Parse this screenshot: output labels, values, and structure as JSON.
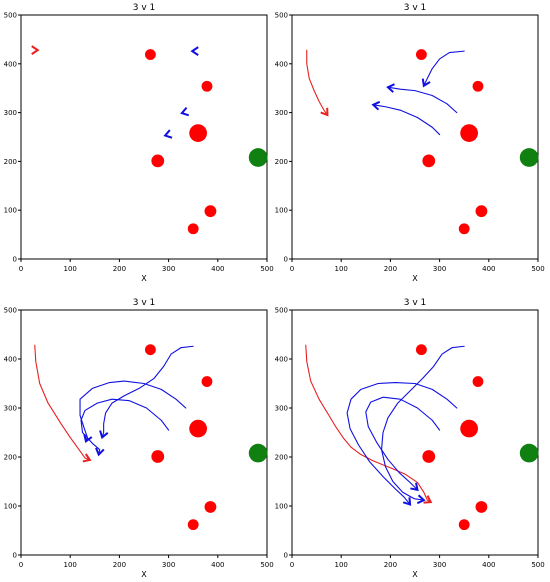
{
  "chart_data": [
    {
      "type": "scatter",
      "title": "3 v 1",
      "xlabel": "X",
      "ylabel": "",
      "xlim": [
        0,
        500
      ],
      "ylim": [
        0,
        500
      ],
      "xticks": [
        0,
        100,
        200,
        300,
        400,
        500
      ],
      "yticks": [
        0,
        100,
        200,
        300,
        400,
        500
      ],
      "grid": false,
      "obstacles": [
        {
          "x": 263,
          "y": 419,
          "r": 11
        },
        {
          "x": 378,
          "y": 354,
          "r": 11
        },
        {
          "x": 360,
          "y": 258,
          "r": 18
        },
        {
          "x": 278,
          "y": 201,
          "r": 13
        },
        {
          "x": 385,
          "y": 98,
          "r": 12
        },
        {
          "x": 350,
          "y": 62,
          "r": 11
        }
      ],
      "goal": {
        "x": 482,
        "y": 208,
        "r": 19
      },
      "series": [
        {
          "color": "#e82020",
          "points": [
            [
              26,
              428
            ],
            [
              34,
              428
            ]
          ]
        },
        {
          "color": "#1010e0",
          "points": [
            [
              355,
              426
            ],
            [
              348,
              426
            ]
          ]
        },
        {
          "color": "#1010e0",
          "points": [
            [
              334,
              301
            ],
            [
              327,
              299
            ]
          ]
        },
        {
          "color": "#1010e0",
          "points": [
            [
              300,
              255
            ],
            [
              293,
              253
            ]
          ]
        }
      ],
      "colors": {
        "evader": "#e82020",
        "pursuer": "#1010e0",
        "obstacle": "#ff0000",
        "goal": "#108010"
      }
    },
    {
      "type": "scatter",
      "title": "3 v 1",
      "xlabel": "X",
      "ylabel": "",
      "xlim": [
        0,
        500
      ],
      "ylim": [
        0,
        500
      ],
      "xticks": [
        0,
        100,
        200,
        300,
        400,
        500
      ],
      "yticks": [
        0,
        100,
        200,
        300,
        400,
        500
      ],
      "grid": false,
      "obstacles": [
        {
          "x": 263,
          "y": 419,
          "r": 11
        },
        {
          "x": 378,
          "y": 354,
          "r": 11
        },
        {
          "x": 360,
          "y": 258,
          "r": 18
        },
        {
          "x": 278,
          "y": 201,
          "r": 13
        },
        {
          "x": 385,
          "y": 98,
          "r": 12
        },
        {
          "x": 350,
          "y": 62,
          "r": 11
        }
      ],
      "goal": {
        "x": 482,
        "y": 208,
        "r": 19
      },
      "series": [
        {
          "color": "#e82020",
          "points": [
            [
              30,
              428
            ],
            [
              30,
              400
            ],
            [
              35,
              370
            ],
            [
              45,
              345
            ],
            [
              55,
              323
            ],
            [
              65,
              305
            ],
            [
              72,
              295
            ]
          ]
        },
        {
          "color": "#1010e0",
          "points": [
            [
              350,
              426
            ],
            [
              320,
              423
            ],
            [
              300,
              410
            ],
            [
              285,
              390
            ],
            [
              275,
              370
            ],
            [
              268,
              355
            ]
          ]
        },
        {
          "color": "#1010e0",
          "points": [
            [
              335,
              300
            ],
            [
              315,
              318
            ],
            [
              285,
              335
            ],
            [
              250,
              345
            ],
            [
              220,
              348
            ],
            [
              195,
              352
            ]
          ]
        },
        {
          "color": "#1010e0",
          "points": [
            [
              300,
              255
            ],
            [
              285,
              270
            ],
            [
              255,
              290
            ],
            [
              220,
              305
            ],
            [
              190,
              312
            ],
            [
              165,
              316
            ]
          ]
        }
      ],
      "colors": {
        "evader": "#e82020",
        "pursuer": "#1010e0",
        "obstacle": "#ff0000",
        "goal": "#108010"
      }
    },
    {
      "type": "scatter",
      "title": "3 v 1",
      "xlabel": "X",
      "ylabel": "",
      "xlim": [
        0,
        500
      ],
      "ylim": [
        0,
        500
      ],
      "xticks": [
        0,
        100,
        200,
        300,
        400,
        500
      ],
      "yticks": [
        0,
        100,
        200,
        300,
        400,
        500
      ],
      "grid": false,
      "obstacles": [
        {
          "x": 263,
          "y": 419,
          "r": 11
        },
        {
          "x": 378,
          "y": 354,
          "r": 11
        },
        {
          "x": 360,
          "y": 258,
          "r": 18
        },
        {
          "x": 278,
          "y": 201,
          "r": 13
        },
        {
          "x": 385,
          "y": 98,
          "r": 12
        },
        {
          "x": 350,
          "y": 62,
          "r": 11
        }
      ],
      "goal": {
        "x": 482,
        "y": 208,
        "r": 19
      },
      "series": [
        {
          "color": "#e82020",
          "points": [
            [
              28,
              428
            ],
            [
              30,
              395
            ],
            [
              38,
              350
            ],
            [
              55,
              310
            ],
            [
              80,
              270
            ],
            [
              100,
              240
            ],
            [
              118,
              215
            ],
            [
              130,
              198
            ],
            [
              140,
              194
            ]
          ]
        },
        {
          "color": "#1010e0",
          "points": [
            [
              350,
              426
            ],
            [
              325,
              423
            ],
            [
              305,
              410
            ],
            [
              290,
              385
            ],
            [
              270,
              360
            ],
            [
              240,
              340
            ],
            [
              210,
              325
            ],
            [
              185,
              310
            ],
            [
              172,
              290
            ],
            [
              168,
              268
            ],
            [
              168,
              250
            ],
            [
              165,
              240
            ]
          ]
        },
        {
          "color": "#1010e0",
          "points": [
            [
              335,
              300
            ],
            [
              315,
              318
            ],
            [
              285,
              338
            ],
            [
              250,
              350
            ],
            [
              210,
              355
            ],
            [
              180,
              352
            ],
            [
              145,
              340
            ],
            [
              120,
              318
            ],
            [
              120,
              285
            ],
            [
              128,
              260
            ],
            [
              135,
              240
            ],
            [
              132,
              232
            ]
          ]
        },
        {
          "color": "#1010e0",
          "points": [
            [
              300,
              255
            ],
            [
              285,
              275
            ],
            [
              255,
              300
            ],
            [
              220,
              315
            ],
            [
              185,
              318
            ],
            [
              155,
              310
            ],
            [
              130,
              295
            ],
            [
              122,
              275
            ],
            [
              125,
              250
            ],
            [
              145,
              228
            ],
            [
              160,
              215
            ],
            [
              158,
              205
            ]
          ]
        }
      ],
      "colors": {
        "evader": "#e82020",
        "pursuer": "#1010e0",
        "obstacle": "#ff0000",
        "goal": "#108010"
      }
    },
    {
      "type": "scatter",
      "title": "3 v 1",
      "xlabel": "X",
      "ylabel": "",
      "xlim": [
        0,
        500
      ],
      "ylim": [
        0,
        500
      ],
      "xticks": [
        0,
        100,
        200,
        300,
        400,
        500
      ],
      "yticks": [
        0,
        100,
        200,
        300,
        400,
        500
      ],
      "grid": false,
      "obstacles": [
        {
          "x": 263,
          "y": 419,
          "r": 11
        },
        {
          "x": 378,
          "y": 354,
          "r": 11
        },
        {
          "x": 360,
          "y": 258,
          "r": 18
        },
        {
          "x": 278,
          "y": 201,
          "r": 13
        },
        {
          "x": 385,
          "y": 98,
          "r": 12
        },
        {
          "x": 350,
          "y": 62,
          "r": 11
        }
      ],
      "goal": {
        "x": 482,
        "y": 208,
        "r": 19
      },
      "series": [
        {
          "color": "#e82020",
          "points": [
            [
              28,
              428
            ],
            [
              30,
              395
            ],
            [
              38,
              355
            ],
            [
              55,
              318
            ],
            [
              75,
              285
            ],
            [
              90,
              260
            ],
            [
              105,
              238
            ],
            [
              120,
              220
            ],
            [
              140,
              205
            ],
            [
              165,
              192
            ],
            [
              200,
              178
            ],
            [
              230,
              165
            ],
            [
              255,
              148
            ],
            [
              268,
              128
            ],
            [
              275,
              112
            ],
            [
              282,
              108
            ]
          ]
        },
        {
          "color": "#1010e0",
          "points": [
            [
              350,
              426
            ],
            [
              325,
              423
            ],
            [
              305,
              410
            ],
            [
              288,
              385
            ],
            [
              265,
              360
            ],
            [
              240,
              335
            ],
            [
              215,
              310
            ],
            [
              195,
              280
            ],
            [
              185,
              250
            ],
            [
              182,
              215
            ],
            [
              190,
              180
            ],
            [
              205,
              150
            ],
            [
              225,
              128
            ],
            [
              248,
              115
            ],
            [
              268,
              112
            ]
          ]
        },
        {
          "color": "#1010e0",
          "points": [
            [
              335,
              300
            ],
            [
              315,
              318
            ],
            [
              285,
              338
            ],
            [
              250,
              350
            ],
            [
              210,
              352
            ],
            [
              175,
              350
            ],
            [
              140,
              338
            ],
            [
              120,
              318
            ],
            [
              112,
              290
            ],
            [
              118,
              258
            ],
            [
              135,
              225
            ],
            [
              158,
              190
            ],
            [
              185,
              160
            ],
            [
              210,
              135
            ],
            [
              228,
              118
            ],
            [
              240,
              103
            ]
          ]
        },
        {
          "color": "#1010e0",
          "points": [
            [
              300,
              255
            ],
            [
              285,
              275
            ],
            [
              255,
              300
            ],
            [
              220,
              318
            ],
            [
              185,
              322
            ],
            [
              160,
              312
            ],
            [
              150,
              292
            ],
            [
              155,
              262
            ],
            [
              172,
              230
            ],
            [
              195,
              195
            ],
            [
              218,
              168
            ],
            [
              240,
              148
            ],
            [
              255,
              133
            ]
          ]
        }
      ],
      "colors": {
        "evader": "#e82020",
        "pursuer": "#1010e0",
        "obstacle": "#ff0000",
        "goal": "#108010"
      }
    }
  ]
}
